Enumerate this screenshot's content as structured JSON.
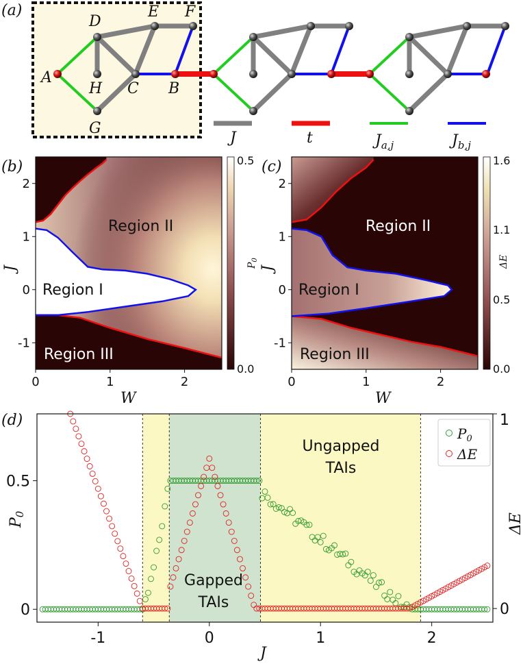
{
  "panel_a": {
    "label": "(a)",
    "nodes": {
      "A": "A",
      "B": "B",
      "C": "C",
      "D": "D",
      "E": "E",
      "F": "F",
      "G": "G",
      "H": "H"
    },
    "legend": [
      {
        "name": "J",
        "color": "#808080"
      },
      {
        "name": "t",
        "color": "#ee1111"
      },
      {
        "name": "J_{a,j}",
        "color": "#22cc22"
      },
      {
        "name": "J_{b,j}",
        "color": "#1111ee"
      }
    ]
  },
  "chart_data": [
    {
      "type": "heatmap",
      "panel": "(b)",
      "xlabel": "W",
      "ylabel": "J",
      "xlim": [
        0,
        2.5
      ],
      "ylim": [
        -1.5,
        2.5
      ],
      "xticks": [
        "0",
        "1",
        "2"
      ],
      "yticks": [
        "2",
        "1",
        "0",
        "-1"
      ],
      "colorbar": {
        "label": "P_0",
        "min": "0.0",
        "max": "0.5",
        "ticks": [
          "0.5",
          "0.0"
        ]
      },
      "regions": [
        "Region I",
        "Region II",
        "Region III"
      ],
      "boundaries": {
        "upper_red": [
          [
            0,
            1.27
          ],
          [
            0.1,
            1.3
          ],
          [
            0.2,
            1.42
          ],
          [
            0.3,
            1.6
          ],
          [
            0.4,
            1.78
          ],
          [
            0.5,
            1.92
          ],
          [
            0.6,
            2.05
          ],
          [
            0.7,
            2.17
          ],
          [
            0.8,
            2.28
          ],
          [
            0.9,
            2.38
          ],
          [
            0.95,
            2.45
          ]
        ],
        "lower_red": [
          [
            0,
            -0.48
          ],
          [
            0.3,
            -0.48
          ],
          [
            0.6,
            -0.53
          ],
          [
            1.0,
            -0.72
          ],
          [
            1.5,
            -0.93
          ],
          [
            2.0,
            -1.1
          ],
          [
            2.5,
            -1.28
          ]
        ],
        "blue": [
          [
            0,
            1.15
          ],
          [
            0.15,
            1.12
          ],
          [
            0.3,
            0.98
          ],
          [
            0.5,
            0.7
          ],
          [
            0.7,
            0.43
          ],
          [
            0.9,
            0.38
          ],
          [
            1.2,
            0.36
          ],
          [
            1.5,
            0.3
          ],
          [
            1.8,
            0.2
          ],
          [
            2.05,
            0.08
          ],
          [
            2.15,
            0.0
          ],
          [
            2.05,
            -0.12
          ],
          [
            1.7,
            -0.22
          ],
          [
            1.2,
            -0.32
          ],
          [
            0.7,
            -0.42
          ],
          [
            0.3,
            -0.48
          ],
          [
            0,
            -0.48
          ]
        ]
      }
    },
    {
      "type": "heatmap",
      "panel": "(c)",
      "xlabel": "W",
      "ylabel": "J",
      "xlim": [
        0,
        2.5
      ],
      "ylim": [
        -1.5,
        2.5
      ],
      "xticks": [
        "0",
        "1",
        "2"
      ],
      "yticks": [
        "2",
        "1",
        "0",
        "-1"
      ],
      "colorbar": {
        "label": "ΔE",
        "min": "0.0",
        "max": "1.6",
        "ticks": [
          "1.6",
          "1.1",
          "0.5",
          "0.0"
        ]
      },
      "regions": [
        "Region I",
        "Region II",
        "Region III"
      ],
      "boundaries": {
        "upper_red": [
          [
            0,
            1.27
          ],
          [
            0.2,
            1.32
          ],
          [
            0.4,
            1.55
          ],
          [
            0.6,
            1.85
          ],
          [
            0.8,
            2.1
          ],
          [
            1.0,
            2.3
          ],
          [
            1.1,
            2.45
          ]
        ],
        "lower_red": [
          [
            0,
            -0.5
          ],
          [
            0.4,
            -0.55
          ],
          [
            0.8,
            -0.72
          ],
          [
            1.2,
            -0.85
          ],
          [
            1.6,
            -0.98
          ],
          [
            2.0,
            -1.08
          ],
          [
            2.5,
            -1.25
          ]
        ],
        "blue": [
          [
            0,
            1.15
          ],
          [
            0.2,
            1.12
          ],
          [
            0.4,
            1.0
          ],
          [
            0.55,
            0.65
          ],
          [
            0.75,
            0.42
          ],
          [
            1.0,
            0.36
          ],
          [
            1.4,
            0.3
          ],
          [
            1.8,
            0.18
          ],
          [
            2.1,
            0.08
          ],
          [
            2.15,
            0.0
          ],
          [
            2.05,
            -0.12
          ],
          [
            1.6,
            -0.22
          ],
          [
            1.0,
            -0.35
          ],
          [
            0.5,
            -0.45
          ],
          [
            0,
            -0.5
          ]
        ]
      }
    },
    {
      "type": "scatter",
      "panel": "(d)",
      "xlabel": "J",
      "ylabel": "P_0",
      "y2label": "ΔE",
      "xlim": [
        -1.55,
        2.55
      ],
      "ylim": [
        -0.05,
        0.76
      ],
      "y2lim": [
        -0.07,
        1.0
      ],
      "xticks": [
        "-1",
        "0",
        "1",
        "2"
      ],
      "yticks": [
        "0",
        "0.5"
      ],
      "y2ticks": [
        "0",
        "1"
      ],
      "vlines": [
        -0.6,
        -0.36,
        0.46,
        1.9
      ],
      "shaded": [
        {
          "from": -0.6,
          "to": -0.36,
          "color": "#fbf8c4"
        },
        {
          "from": -0.36,
          "to": 0.46,
          "color": "#cfe3cf"
        },
        {
          "from": 0.46,
          "to": 1.9,
          "color": "#fbf8c4"
        }
      ],
      "annotations": [
        {
          "lines": [
            "Gapped",
            "TAIs"
          ],
          "x": 0.05,
          "y": 0.12
        },
        {
          "lines": [
            "Ungapped",
            "TAIs"
          ],
          "x": 1.2,
          "y": 0.57
        }
      ],
      "series": [
        {
          "name": "P_0",
          "color": "#2e9a2e",
          "description": "0 for J<-0.6; rises to 0.5 by J=-0.36; 0.5 plateau to 0.46; decays to 0 at 1.9"
        },
        {
          "name": "ΔE",
          "color": "#e02020",
          "description": "linear decrease from 1.0 at J=-1.25 to 0 at -0.6; 0 to -0.35; peak 0.77 at J=0; 0 from 0.46 to 1.8; rising to 0.22 at 2.5"
        }
      ],
      "legend": [
        "P_0",
        "ΔE"
      ]
    }
  ]
}
